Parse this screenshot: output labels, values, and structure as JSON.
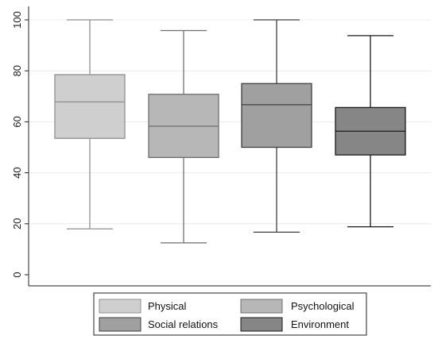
{
  "chart_data": {
    "type": "box",
    "title": "",
    "xlabel": "",
    "ylabel": "",
    "ylim": [
      0,
      100
    ],
    "yticks": [
      "0",
      "20",
      "40",
      "60",
      "80",
      "100"
    ],
    "grid": true,
    "legend_position": "bottom",
    "series": [
      {
        "name": "Physical",
        "min": 18,
        "q1": 53.5,
        "median": 67.8,
        "q3": 78.5,
        "max": 100,
        "fill": "#cfcfcf",
        "line": "#8f8f8f"
      },
      {
        "name": "Psychological",
        "min": 12.5,
        "q1": 46,
        "median": 58.3,
        "q3": 70.8,
        "max": 95.8,
        "fill": "#b7b7b7",
        "line": "#6f6f6f"
      },
      {
        "name": "Social relations",
        "min": 16.7,
        "q1": 50,
        "median": 66.7,
        "q3": 75,
        "max": 100,
        "fill": "#a0a0a0",
        "line": "#3f3f3f"
      },
      {
        "name": "Environment",
        "min": 18.8,
        "q1": 47,
        "median": 56.3,
        "q3": 65.6,
        "max": 93.8,
        "fill": "#868686",
        "line": "#1a1a1a"
      }
    ]
  }
}
